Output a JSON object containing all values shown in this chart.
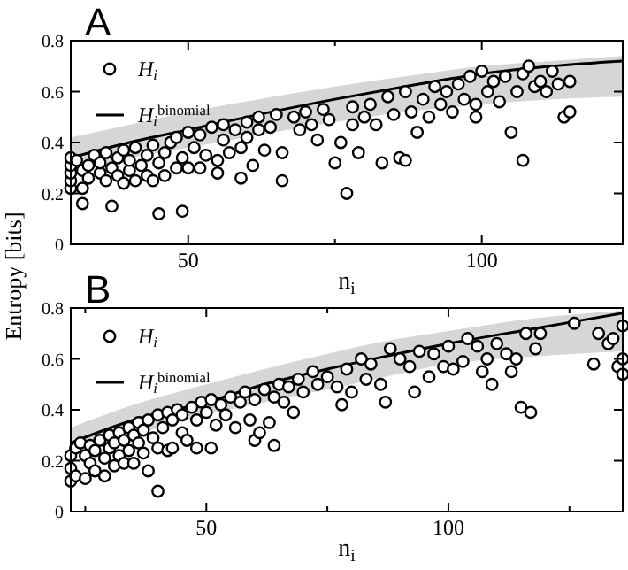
{
  "chart_data": [
    {
      "type": "scatter",
      "title": "A",
      "xlabel": "n$_{i}$",
      "ylabel": "Entropy [bits]",
      "xlim": [
        30,
        124
      ],
      "ylim": [
        0,
        0.8
      ],
      "xticks": [
        {
          "value": 50,
          "label": "50"
        },
        {
          "value": 75,
          "label": null
        },
        {
          "value": 100,
          "label": "100"
        }
      ],
      "yticks": [
        0,
        0.2,
        0.4,
        0.6,
        0.8
      ],
      "legend": "top left",
      "series": [
        {
          "name": "H$_{i}$",
          "color": "#000000",
          "marker": "circle",
          "x": [
            30,
            30,
            30,
            30,
            30,
            31,
            32,
            32,
            32,
            33,
            33,
            34,
            35,
            35,
            36,
            36,
            37,
            37,
            38,
            38,
            39,
            39,
            40,
            40,
            41,
            41,
            42,
            43,
            43,
            44,
            44,
            45,
            45,
            46,
            46,
            47,
            48,
            48,
            49,
            49,
            50,
            50,
            51,
            52,
            52,
            53,
            54,
            55,
            55,
            56,
            56,
            57,
            58,
            59,
            59,
            60,
            60,
            61,
            62,
            62,
            63,
            64,
            65,
            66,
            66,
            68,
            69,
            70,
            71,
            72,
            73,
            74,
            75,
            76,
            77,
            78,
            78,
            79,
            80,
            81,
            82,
            83,
            84,
            85,
            86,
            87,
            87,
            88,
            89,
            90,
            91,
            92,
            93,
            94,
            95,
            96,
            97,
            98,
            99,
            99,
            100,
            101,
            102,
            103,
            104,
            105,
            106,
            107,
            107,
            108,
            109,
            110,
            111,
            112,
            113,
            114,
            115,
            115
          ],
          "values": [
            0.22,
            0.25,
            0.28,
            0.31,
            0.34,
            0.33,
            0.16,
            0.22,
            0.29,
            0.26,
            0.31,
            0.35,
            0.28,
            0.32,
            0.25,
            0.36,
            0.15,
            0.3,
            0.27,
            0.34,
            0.24,
            0.37,
            0.29,
            0.33,
            0.25,
            0.38,
            0.31,
            0.35,
            0.27,
            0.39,
            0.25,
            0.12,
            0.32,
            0.36,
            0.27,
            0.4,
            0.3,
            0.42,
            0.13,
            0.34,
            0.3,
            0.44,
            0.38,
            0.3,
            0.43,
            0.35,
            0.46,
            0.33,
            0.28,
            0.41,
            0.47,
            0.36,
            0.45,
            0.38,
            0.26,
            0.48,
            0.42,
            0.31,
            0.45,
            0.5,
            0.37,
            0.46,
            0.51,
            0.36,
            0.25,
            0.5,
            0.45,
            0.52,
            0.47,
            0.41,
            0.53,
            0.49,
            0.32,
            0.4,
            0.2,
            0.54,
            0.47,
            0.36,
            0.5,
            0.55,
            0.47,
            0.32,
            0.58,
            0.51,
            0.34,
            0.6,
            0.33,
            0.52,
            0.44,
            0.57,
            0.5,
            0.62,
            0.55,
            0.6,
            0.52,
            0.63,
            0.57,
            0.66,
            0.5,
            0.55,
            0.68,
            0.6,
            0.64,
            0.56,
            0.66,
            0.44,
            0.6,
            0.33,
            0.67,
            0.7,
            0.62,
            0.64,
            0.6,
            0.68,
            0.63,
            0.5,
            0.52,
            0.64
          ]
        },
        {
          "name": "H$_{i}$$^{binomial}$",
          "type": "line",
          "color": "#000000",
          "x": [
            30,
            40,
            50,
            62,
            75,
            87,
            100,
            112,
            124
          ],
          "values": [
            0.34,
            0.4,
            0.45,
            0.51,
            0.57,
            0.62,
            0.67,
            0.7,
            0.72
          ],
          "lower": [
            0.3,
            0.34,
            0.38,
            0.43,
            0.48,
            0.52,
            0.55,
            0.57,
            0.58
          ],
          "upper": [
            0.42,
            0.47,
            0.52,
            0.57,
            0.62,
            0.66,
            0.7,
            0.72,
            0.74
          ]
        }
      ]
    },
    {
      "type": "scatter",
      "title": "B",
      "xlabel": "n$_{i}$",
      "xlim": [
        22,
        136
      ],
      "ylim": [
        0,
        0.8
      ],
      "xticks": [
        {
          "value": 25,
          "label": null
        },
        {
          "value": 50,
          "label": "50"
        },
        {
          "value": 75,
          "label": null
        },
        {
          "value": 100,
          "label": "100"
        },
        {
          "value": 125,
          "label": null
        }
      ],
      "yticks": [
        0,
        0.2,
        0.4,
        0.6,
        0.8
      ],
      "legend": "top left",
      "series": [
        {
          "name": "H$_{i}$",
          "color": "#000000",
          "marker": "circle",
          "x": [
            22,
            22,
            22,
            23,
            23,
            24,
            25,
            25,
            26,
            26,
            27,
            27,
            28,
            29,
            29,
            30,
            30,
            31,
            31,
            32,
            32,
            33,
            33,
            34,
            34,
            35,
            35,
            36,
            36,
            37,
            37,
            38,
            38,
            39,
            40,
            40,
            40,
            41,
            42,
            42,
            43,
            43,
            44,
            45,
            45,
            46,
            47,
            48,
            48,
            49,
            50,
            51,
            51,
            52,
            53,
            54,
            55,
            56,
            57,
            58,
            59,
            60,
            60,
            61,
            62,
            63,
            64,
            64,
            65,
            66,
            67,
            68,
            69,
            70,
            72,
            73,
            75,
            77,
            78,
            79,
            80,
            82,
            83,
            84,
            86,
            87,
            88,
            90,
            92,
            93,
            94,
            96,
            97,
            99,
            100,
            101,
            103,
            104,
            106,
            107,
            108,
            109,
            110,
            112,
            113,
            114,
            115,
            116,
            117,
            118,
            119,
            126,
            130,
            131,
            133,
            134,
            135,
            136,
            136,
            136
          ],
          "values": [
            0.12,
            0.17,
            0.22,
            0.14,
            0.25,
            0.27,
            0.13,
            0.22,
            0.19,
            0.26,
            0.16,
            0.24,
            0.28,
            0.14,
            0.21,
            0.25,
            0.3,
            0.18,
            0.27,
            0.22,
            0.31,
            0.19,
            0.28,
            0.24,
            0.33,
            0.19,
            0.3,
            0.27,
            0.35,
            0.23,
            0.32,
            0.16,
            0.36,
            0.29,
            0.08,
            0.25,
            0.38,
            0.33,
            0.24,
            0.39,
            0.36,
            0.25,
            0.4,
            0.31,
            0.38,
            0.28,
            0.41,
            0.25,
            0.36,
            0.43,
            0.39,
            0.25,
            0.44,
            0.34,
            0.42,
            0.38,
            0.45,
            0.33,
            0.43,
            0.47,
            0.36,
            0.28,
            0.44,
            0.31,
            0.48,
            0.35,
            0.26,
            0.45,
            0.5,
            0.43,
            0.49,
            0.39,
            0.52,
            0.47,
            0.55,
            0.5,
            0.53,
            0.49,
            0.42,
            0.56,
            0.47,
            0.6,
            0.52,
            0.58,
            0.5,
            0.43,
            0.64,
            0.6,
            0.57,
            0.47,
            0.63,
            0.53,
            0.62,
            0.57,
            0.65,
            0.56,
            0.59,
            0.68,
            0.65,
            0.55,
            0.6,
            0.5,
            0.66,
            0.62,
            0.55,
            0.6,
            0.41,
            0.7,
            0.39,
            0.64,
            0.7,
            0.74,
            0.58,
            0.7,
            0.66,
            0.68,
            0.57,
            0.6,
            0.54,
            0.73
          ]
        },
        {
          "name": "H$_{i}$$^{binomial}$",
          "type": "line",
          "color": "#000000",
          "x": [
            22,
            35,
            50,
            62,
            75,
            87,
            100,
            118,
            136
          ],
          "values": [
            0.27,
            0.36,
            0.43,
            0.5,
            0.56,
            0.61,
            0.66,
            0.72,
            0.78
          ],
          "lower": [
            0.22,
            0.3,
            0.38,
            0.43,
            0.48,
            0.53,
            0.58,
            0.61,
            0.63
          ],
          "upper": [
            0.33,
            0.42,
            0.5,
            0.56,
            0.62,
            0.67,
            0.71,
            0.76,
            0.79
          ]
        }
      ]
    }
  ]
}
